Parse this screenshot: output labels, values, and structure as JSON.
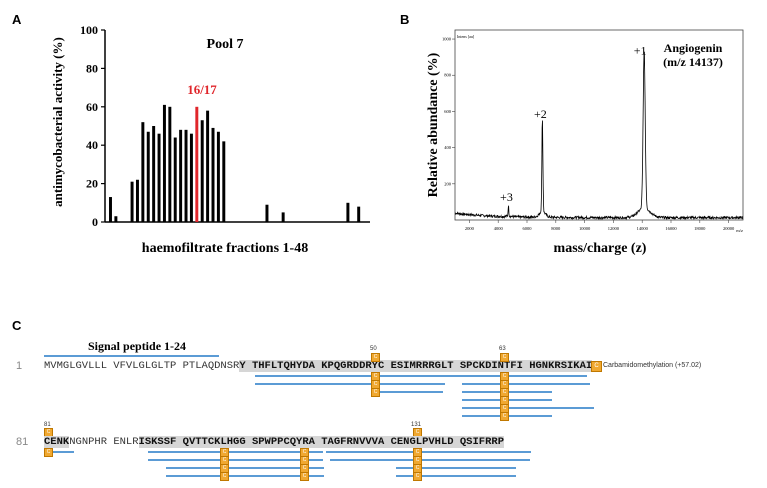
{
  "panelA": {
    "letter": "A",
    "chart_data": {
      "type": "bar",
      "title": "Pool 7",
      "xlabel": "haemofiltrate fractions 1-48",
      "ylabel": "antimycobacterial activity (%)",
      "ylim": [
        0,
        100
      ],
      "yticks": [
        "0",
        "20",
        "40",
        "60",
        "80",
        "100"
      ],
      "highlight_label": "16/17",
      "highlight_color": "#e0262b",
      "bar_color": "#000000",
      "values": [
        13,
        3,
        0,
        0,
        21,
        22,
        52,
        47,
        50,
        46,
        61,
        60,
        44,
        48,
        48,
        46,
        60,
        53,
        58,
        49,
        47,
        42,
        0,
        0,
        0,
        0,
        0,
        0,
        0,
        9,
        0,
        0,
        5,
        0,
        0,
        0,
        0,
        0,
        0,
        0,
        0,
        0,
        0,
        0,
        10,
        0,
        8,
        0
      ],
      "highlight_indices": [
        16
      ]
    }
  },
  "panelB": {
    "letter": "B",
    "chart_data": {
      "type": "line",
      "xlabel": "mass/charge (z)",
      "ylabel": "Relative abundance (%)",
      "x_unit_label": "m/z",
      "y_unit_label": "Intens [au]",
      "xlim": [
        1000,
        21000
      ],
      "xticks": [
        "2000",
        "4000",
        "6000",
        "8000",
        "10000",
        "12000",
        "14000",
        "16000",
        "18000",
        "20000"
      ],
      "ylim": [
        0,
        1050
      ],
      "yticks": [
        "200",
        "400",
        "600",
        "800",
        "1000"
      ],
      "peaks": [
        {
          "x": 4712,
          "y": 60,
          "label": "+3"
        },
        {
          "x": 7068,
          "y": 520,
          "label": "+2"
        },
        {
          "x": 14137,
          "y": 870,
          "label": "+1"
        }
      ],
      "annotation_title": "Angiogenin",
      "annotation_sub": "(m/z 14137)"
    }
  },
  "panelC": {
    "letter": "C",
    "signal_peptide_label": "Signal peptide 1-24",
    "row1_num": "1",
    "row1_plain": "MVMGLGVLLL VFVLGLGLTP PTLAQDNSR",
    "row1_hl": "Y THFLTQHYDA KPQGRDDRYC ESIMRRRGLT SPCKDINTFI HGNKRSIKAI",
    "row2_num": "81",
    "row2_hl1": "CENK",
    "row2_plain1": "NGNPHR ENLR",
    "row2_hl2": "ISKSSF QVTTCKLHGG SPWPPCQYRA TAGFRNVVVA CENGLPVHLD QSIFRRP",
    "pos_50": "50",
    "pos_63": "63",
    "pos_81": "81",
    "pos_131": "131",
    "mod_glyph": "C",
    "legend_label": "Carbamidomethylation (+57.02)"
  }
}
